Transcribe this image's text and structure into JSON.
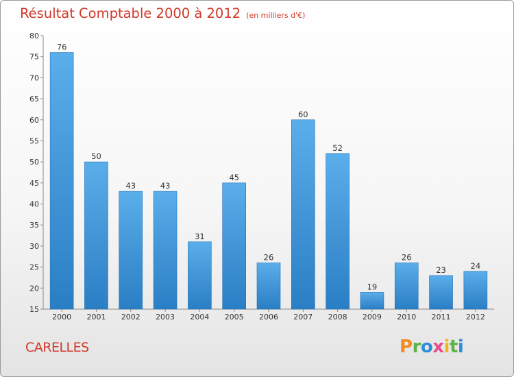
{
  "header": {
    "title": "Résultat Comptable 2000 à 2012",
    "unit": "(en milliers d'€)"
  },
  "commune": "CARELLES",
  "logo": {
    "text": "Proxiti",
    "letters": [
      "P",
      "r",
      "o",
      "x",
      "i",
      "t",
      "i"
    ],
    "letter_colors": [
      "#f28c1e",
      "#5bb34a",
      "#2f8fd6",
      "#e84b8a",
      "#f0b71a",
      "#5bb34a",
      "#2f8fd6"
    ]
  },
  "colors": {
    "bar_top": "#5aaeea",
    "bar_bottom": "#2a7ec4",
    "title": "#d1382a"
  },
  "chart_data": {
    "type": "bar",
    "title": "Résultat Comptable 2000 à 2012",
    "subtitle": "(en milliers d'€)",
    "xlabel": "",
    "ylabel": "",
    "categories": [
      "2000",
      "2001",
      "2002",
      "2003",
      "2004",
      "2005",
      "2006",
      "2007",
      "2008",
      "2009",
      "2010",
      "2011",
      "2012"
    ],
    "values": [
      76,
      50,
      43,
      43,
      31,
      45,
      26,
      60,
      52,
      19,
      26,
      23,
      24
    ],
    "ylim": [
      15,
      80
    ],
    "yticks": [
      15,
      20,
      25,
      30,
      35,
      40,
      45,
      50,
      55,
      60,
      65,
      70,
      75,
      80
    ],
    "grid": false,
    "data_labels": true
  }
}
